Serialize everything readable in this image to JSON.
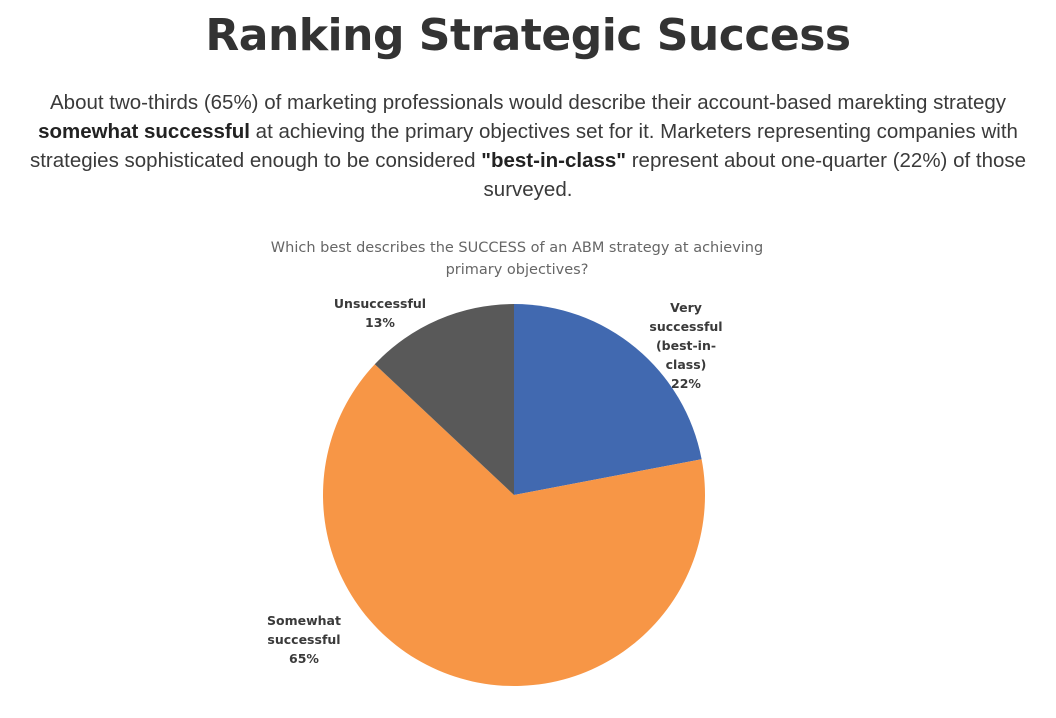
{
  "page_title": "Ranking Strategic Success",
  "description": [
    {
      "text": "About two-thirds (65%) of marketing professionals would describe their account-based marekting strategy ",
      "bold": false
    },
    {
      "text": "somewhat successful",
      "bold": true
    },
    {
      "text": " at achieving the primary objectives set for it. Marketers representing companies with strategies sophisticated enough to be considered ",
      "bold": false
    },
    {
      "text": "\"best-in-class\"",
      "bold": true
    },
    {
      "text": " represent about one-quarter (22%) of those surveyed.",
      "bold": false
    }
  ],
  "chart_data": {
    "type": "pie",
    "title": "Which best describes the SUCCESS of an ABM strategy at achieving primary objectives?",
    "categories": [
      "Very successful (best-in-class)",
      "Somewhat successful",
      "Unsuccessful"
    ],
    "values": [
      22,
      65,
      13
    ],
    "value_labels": [
      "22%",
      "65%",
      "13%"
    ],
    "colors": [
      "#4169b0",
      "#f79646",
      "#595959"
    ]
  }
}
